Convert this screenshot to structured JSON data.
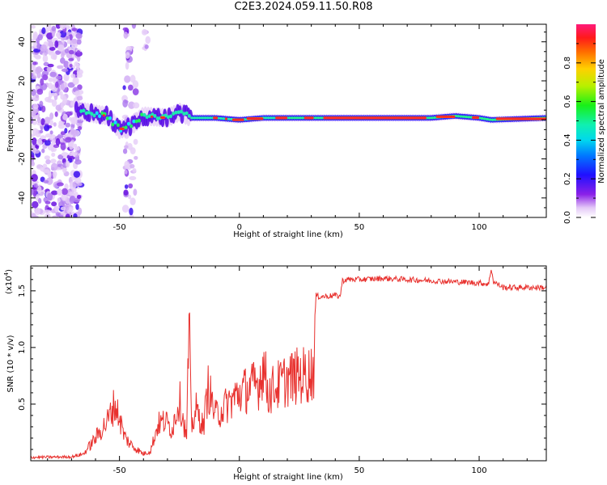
{
  "title": "C2E3.2024.059.11.50.R08",
  "chart_data": [
    {
      "type": "heatmap",
      "xlabel": "Height of straight line (km)",
      "ylabel": "Frequency (Hz)",
      "xlim": [
        -87,
        128
      ],
      "ylim": [
        -50,
        49
      ],
      "xticks": [
        "-50",
        "0",
        "50",
        "100"
      ],
      "yticks": [
        "-40",
        "-20",
        "0",
        "20",
        "40"
      ],
      "grid": false,
      "colorbar": {
        "label": "Normalized spectral amplitude",
        "ticks": [
          "0.0",
          "0.2",
          "0.4",
          "0.6",
          "0.8"
        ],
        "range": [
          0,
          1
        ]
      },
      "ridge": {
        "x": [
          -68,
          -60,
          -55,
          -50,
          -45,
          -40,
          -30,
          -25,
          -20,
          -10,
          0,
          10,
          20,
          30,
          40,
          60,
          80,
          90,
          100,
          105,
          128
        ],
        "frequency": [
          5,
          3,
          2,
          -5,
          -3,
          2,
          1,
          4,
          1,
          1,
          0,
          1,
          1,
          1,
          1,
          1,
          1,
          2,
          1,
          0,
          1
        ]
      }
    },
    {
      "type": "line",
      "xlabel": "Height of straight line (km)",
      "ylabel": "SNR (10 * v/v)",
      "y_multiplier": "(x10^4)",
      "xlim": [
        -87,
        128
      ],
      "ylim": [
        0,
        17200
      ],
      "xticks": [
        "-50",
        "0",
        "50",
        "100"
      ],
      "yticks": [
        "0.5",
        "1.0",
        "1.5"
      ],
      "series": [
        {
          "color": "#e8312e",
          "x": [
            -87,
            -70,
            -65,
            -60,
            -55,
            -52,
            -50,
            -48,
            -46,
            -44,
            -42,
            -40,
            -37,
            -34,
            -31,
            -28,
            -25,
            -22,
            -21,
            -20,
            -18,
            -15,
            -13,
            -10,
            -5,
            0,
            5,
            8,
            10,
            12,
            15,
            20,
            25,
            30,
            31,
            32,
            33,
            35,
            40,
            42,
            43,
            45,
            50,
            60,
            70,
            80,
            90,
            100,
            104,
            105,
            106,
            110,
            120,
            128
          ],
          "values": [
            300,
            350,
            600,
            2000,
            3500,
            5000,
            3800,
            2200,
            1600,
            1200,
            900,
            600,
            900,
            3200,
            3500,
            2800,
            5500,
            2000,
            12000,
            3000,
            4500,
            3000,
            6500,
            4000,
            5000,
            6000,
            6500,
            6800,
            8500,
            6000,
            6500,
            7200,
            7500,
            7700,
            8200,
            14600,
            14500,
            14500,
            14600,
            14500,
            15900,
            16000,
            16000,
            16100,
            16000,
            15900,
            15800,
            15700,
            15600,
            17000,
            15800,
            15300,
            15300,
            15300
          ]
        }
      ]
    }
  ]
}
